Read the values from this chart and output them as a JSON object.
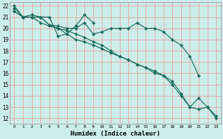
{
  "xlabel": "Humidex (Indice chaleur)",
  "bg_color": "#cceee8",
  "grid_color": "#e8a0a0",
  "line_color": "#1a6b5a",
  "xlim": [
    -0.5,
    23.5
  ],
  "ylim": [
    11.5,
    22.3
  ],
  "yticks": [
    12,
    13,
    14,
    15,
    16,
    17,
    18,
    19,
    20,
    21,
    22
  ],
  "xticks": [
    0,
    1,
    2,
    3,
    4,
    5,
    6,
    7,
    8,
    9,
    10,
    11,
    12,
    13,
    14,
    15,
    16,
    17,
    18,
    19,
    20,
    21,
    22,
    23
  ],
  "series": [
    {
      "x": [
        0,
        1,
        2,
        3,
        4,
        5,
        6,
        7,
        8,
        9
      ],
      "y": [
        22.0,
        21.0,
        21.2,
        21.0,
        21.0,
        19.3,
        19.5,
        20.2,
        21.2,
        20.5
      ]
    },
    {
      "x": [
        0,
        1,
        2,
        3,
        4,
        5,
        6,
        7,
        8,
        9,
        10,
        11,
        12,
        13,
        14,
        15,
        16,
        17,
        18,
        19,
        20,
        21
      ],
      "y": [
        21.5,
        21.0,
        21.0,
        21.0,
        20.3,
        20.2,
        20.0,
        20.0,
        20.5,
        19.5,
        19.7,
        20.0,
        20.0,
        20.0,
        20.5,
        20.0,
        20.0,
        19.7,
        19.0,
        18.5,
        17.5,
        15.8
      ]
    },
    {
      "x": [
        0,
        1,
        2,
        3,
        4,
        5,
        6,
        7,
        8,
        9,
        10,
        11,
        12,
        13,
        14,
        15,
        16,
        17,
        18,
        19,
        20,
        21,
        22,
        23
      ],
      "y": [
        21.5,
        21.0,
        21.0,
        20.5,
        20.2,
        20.0,
        19.8,
        19.5,
        19.2,
        18.8,
        18.5,
        18.0,
        17.5,
        17.2,
        16.8,
        16.5,
        16.2,
        15.8,
        15.0,
        14.0,
        13.0,
        12.8,
        13.0,
        12.2
      ]
    },
    {
      "x": [
        0,
        1,
        2,
        3,
        4,
        5,
        6,
        7,
        8,
        9,
        10,
        11,
        12,
        13,
        14,
        15,
        16,
        17,
        18,
        19,
        20,
        21,
        22,
        23
      ],
      "y": [
        21.8,
        21.0,
        21.0,
        21.0,
        20.3,
        20.0,
        19.5,
        19.0,
        18.8,
        18.5,
        18.2,
        17.8,
        17.5,
        17.2,
        16.8,
        16.5,
        16.0,
        15.8,
        15.3,
        14.2,
        13.0,
        13.8,
        13.0,
        12.0
      ]
    }
  ]
}
